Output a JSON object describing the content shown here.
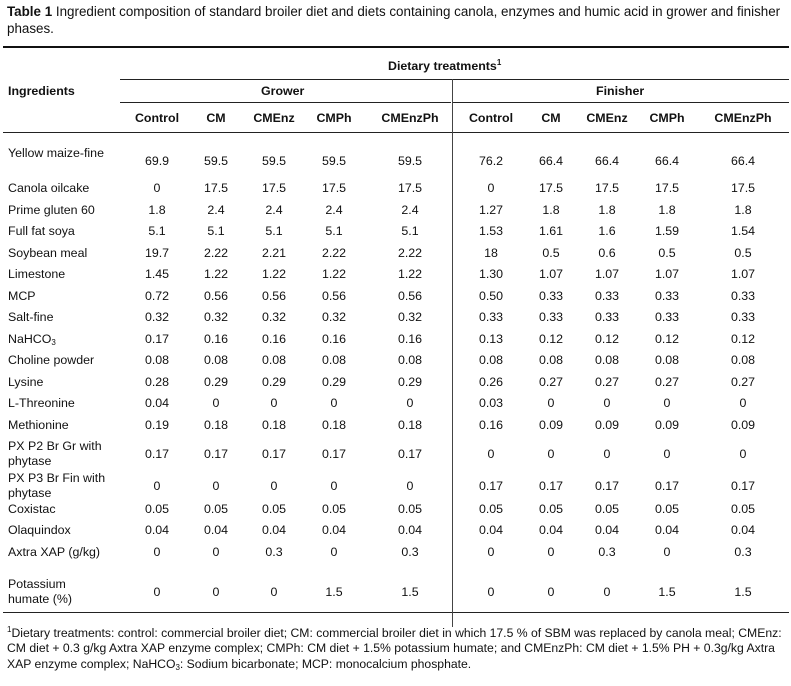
{
  "caption": {
    "label": "Table 1",
    "text": " Ingredient composition of standard broiler diet and diets containing canola, enzymes and humic acid in grower and finisher phases."
  },
  "header": {
    "ingredients": "Ingredients",
    "dietary_treatments": "Dietary treatments",
    "dietary_treatments_sup": "1",
    "grower": "Grower",
    "finisher": "Finisher",
    "columns": [
      "Control",
      "CM",
      "CMEnz",
      "CMPh",
      "CMEnzPh",
      "Control",
      "CM",
      "CMEnz",
      "CMPh",
      "CMEnzPh"
    ]
  },
  "rows": [
    {
      "label": "Yellow maize-fine",
      "values": [
        "69.9",
        "59.5",
        "59.5",
        "59.5",
        "59.5",
        "76.2",
        "66.4",
        "66.4",
        "66.4",
        "66.4"
      ]
    },
    {
      "label": "Canola oilcake",
      "values": [
        "0",
        "17.5",
        "17.5",
        "17.5",
        "17.5",
        "0",
        "17.5",
        "17.5",
        "17.5",
        "17.5"
      ]
    },
    {
      "label": "Prime gluten 60",
      "values": [
        "1.8",
        "2.4",
        "2.4",
        "2.4",
        "2.4",
        "1.27",
        "1.8",
        "1.8",
        "1.8",
        "1.8"
      ]
    },
    {
      "label": "Full fat soya",
      "values": [
        "5.1",
        "5.1",
        "5.1",
        "5.1",
        "5.1",
        "1.53",
        "1.61",
        "1.6",
        "1.59",
        "1.54"
      ]
    },
    {
      "label": "Soybean meal",
      "values": [
        "19.7",
        "2.22",
        "2.21",
        "2.22",
        "2.22",
        "18",
        "0.5",
        "0.6",
        "0.5",
        "0.5"
      ]
    },
    {
      "label": "Limestone",
      "values": [
        "1.45",
        "1.22",
        "1.22",
        "1.22",
        "1.22",
        "1.30",
        "1.07",
        "1.07",
        "1.07",
        "1.07"
      ]
    },
    {
      "label": "MCP",
      "values": [
        "0.72",
        "0.56",
        "0.56",
        "0.56",
        "0.56",
        "0.50",
        "0.33",
        "0.33",
        "0.33",
        "0.33"
      ]
    },
    {
      "label": "Salt-fine",
      "values": [
        "0.32",
        "0.32",
        "0.32",
        "0.32",
        "0.32",
        "0.33",
        "0.33",
        "0.33",
        "0.33",
        "0.33"
      ]
    },
    {
      "label": "NaHCO",
      "label_sub": "3",
      "values": [
        "0.17",
        "0.16",
        "0.16",
        "0.16",
        "0.16",
        "0.13",
        "0.12",
        "0.12",
        "0.12",
        "0.12"
      ]
    },
    {
      "label": "Choline powder",
      "values": [
        "0.08",
        "0.08",
        "0.08",
        "0.08",
        "0.08",
        "0.08",
        "0.08",
        "0.08",
        "0.08",
        "0.08"
      ]
    },
    {
      "label": "Lysine",
      "values": [
        "0.28",
        "0.29",
        "0.29",
        "0.29",
        "0.29",
        "0.26",
        "0.27",
        "0.27",
        "0.27",
        "0.27"
      ]
    },
    {
      "label": "L-Threonine",
      "values": [
        "0.04",
        "0",
        "0",
        "0",
        "0",
        "0.03",
        "0",
        "0",
        "0",
        "0"
      ]
    },
    {
      "label": "Methionine",
      "values": [
        "0.19",
        "0.18",
        "0.18",
        "0.18",
        "0.18",
        "0.16",
        "0.09",
        "0.09",
        "0.09",
        "0.09"
      ]
    },
    {
      "label": "PX P2 Br Gr with phytase",
      "values": [
        "0.17",
        "0.17",
        "0.17",
        "0.17",
        "0.17",
        "0",
        "0",
        "0",
        "0",
        "0"
      ]
    },
    {
      "label": "PX P3 Br Fin with phytase",
      "values": [
        "0",
        "0",
        "0",
        "0",
        "0",
        "0.17",
        "0.17",
        "0.17",
        "0.17",
        "0.17"
      ]
    },
    {
      "label": "Coxistac",
      "values": [
        "0.05",
        "0.05",
        "0.05",
        "0.05",
        "0.05",
        "0.05",
        "0.05",
        "0.05",
        "0.05",
        "0.05"
      ]
    },
    {
      "label": "Olaquindox",
      "values": [
        "0.04",
        "0.04",
        "0.04",
        "0.04",
        "0.04",
        "0.04",
        "0.04",
        "0.04",
        "0.04",
        "0.04"
      ]
    },
    {
      "label": "Axtra XAP (g/kg)",
      "values": [
        "0",
        "0",
        "0.3",
        "0",
        "0.3",
        "0",
        "0",
        "0.3",
        "0",
        "0.3"
      ]
    },
    {
      "label": "Potassium humate (%)",
      "values": [
        "0",
        "0",
        "0",
        "1.5",
        "1.5",
        "0",
        "0",
        "0",
        "1.5",
        "1.5"
      ]
    }
  ],
  "footnote": {
    "sup": "1",
    "text_a": "Dietary treatments: control: commercial broiler diet; CM: commercial broiler diet in which 17.5 % of SBM was replaced by canola meal; CMEnz: CM diet + 0.3 g/kg Axtra XAP enzyme complex; CMPh: CM diet + 1.5% potassium humate; and CMEnzPh: CM diet + 1.5% PH + 0.3g/kg Axtra XAP enzyme complex; NaHCO",
    "text_sub": "3",
    "text_b": ": Sodium bicarbonate; MCP: monocalcium phosphate."
  }
}
